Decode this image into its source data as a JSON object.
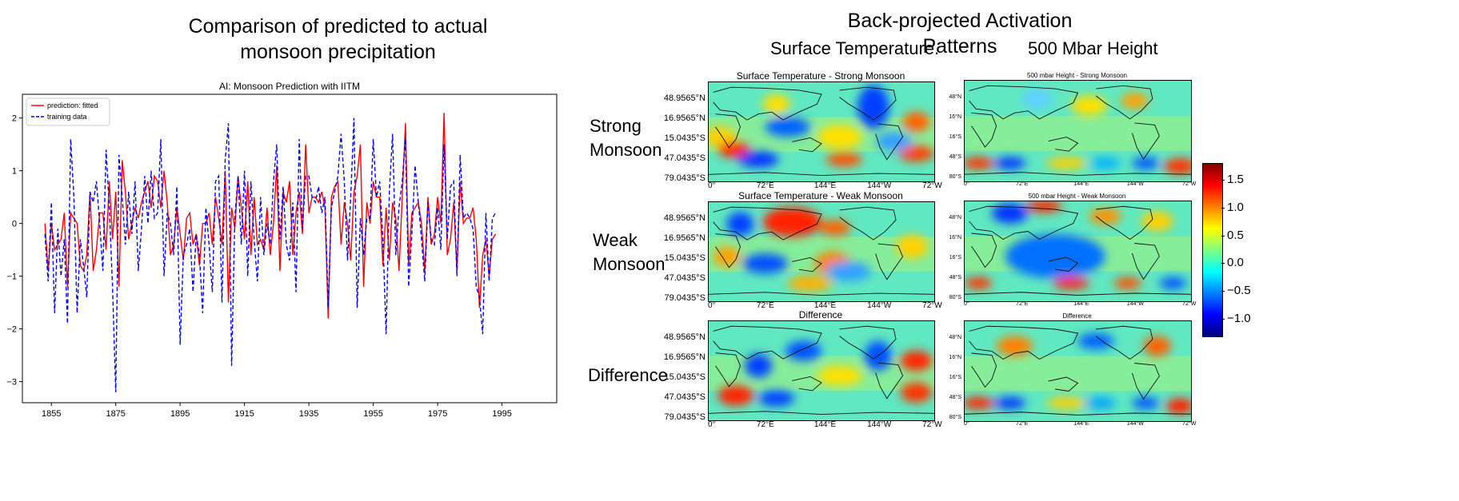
{
  "left_heading": {
    "line1": "Comparison of predicted to actual",
    "line2": "monsoon precipitation"
  },
  "right_heading": "Back-projected Activation Patterns",
  "column_headers": {
    "surface": "Surface Temperature.",
    "height": "500 Mbar Height"
  },
  "row_labels": {
    "strong": {
      "line1": "Strong",
      "line2": "Monsoon"
    },
    "weak": {
      "line1": "Weak",
      "line2": "Monsoon"
    },
    "difference": "Difference"
  },
  "map_titles": {
    "st_strong": "Surface Temperature - Strong Monsoon",
    "st_weak": "Surface Temperature - Weak Monsoon",
    "st_diff": "Difference",
    "h_strong": "500 mbar Height - Strong Monsoon",
    "h_weak": "500 mbar Height - Weak Monsoon",
    "h_diff": "Difference"
  },
  "map_lat_labels_st": [
    "48.9565°N",
    "16.9565°N",
    "15.0435°S",
    "47.0435°S",
    "79.0435°S"
  ],
  "map_lat_labels_h": [
    "48°N",
    "16°N",
    "16°S",
    "48°S",
    "80°S"
  ],
  "map_lon_labels": [
    "0°",
    "72°E",
    "144°E",
    "144°W",
    "72°W"
  ],
  "colorbar": {
    "ticks": [
      "1.5",
      "1.0",
      "0.5",
      "0.0",
      "−0.5",
      "−1.0"
    ],
    "tick_values": [
      1.5,
      1.0,
      0.5,
      0.0,
      -0.5,
      -1.0
    ],
    "range": [
      -1.3,
      1.8
    ],
    "colormap": "jet"
  },
  "chart_data": {
    "type": "line",
    "title": "AI: Monsoon Prediction with IITM",
    "xlabel": "",
    "ylabel": "",
    "xlim": [
      1846,
      2012
    ],
    "ylim": [
      -3.4,
      2.45
    ],
    "xticks": [
      1855,
      1875,
      1895,
      1915,
      1935,
      1955,
      1975,
      1995
    ],
    "yticks": [
      2,
      1,
      0,
      -1,
      -2,
      -3
    ],
    "legend_position": "top-left",
    "grid": false,
    "series": [
      {
        "name": "prediction: fitted",
        "color": "#ff0000",
        "style": "solid",
        "x_start": 1853,
        "values": [
          0.0,
          -0.9,
          0.0,
          -0.5,
          -0.4,
          -0.3,
          0.2,
          -1.2,
          0.2,
          0.1,
          0.0,
          -0.8,
          -0.9,
          -0.6,
          0.6,
          -0.9,
          -0.5,
          0.2,
          0.2,
          -0.5,
          0.8,
          -0.3,
          0.6,
          -1.2,
          1.2,
          0.6,
          -0.3,
          0.0,
          0.3,
          0.1,
          0.4,
          0.6,
          0.8,
          0.3,
          0.9,
          0.8,
          0.3,
          1.0,
          0.4,
          -0.6,
          -0.4,
          0.3,
          -0.2,
          -0.7,
          0.1,
          0.2,
          -0.4,
          -0.2,
          -0.8,
          0.0,
          0.0,
          0.2,
          -0.4,
          0.5,
          0.1,
          -0.4,
          1.0,
          -1.5,
          0.3,
          -0.1,
          0.9,
          0.3,
          -0.3,
          0.8,
          -0.6,
          0.5,
          -0.4,
          -0.3,
          -0.5,
          0.3,
          -0.6,
          0.0,
          1.1,
          -0.9,
          0.6,
          0.4,
          0.8,
          -0.6,
          0.2,
          0.6,
          -0.2,
          1.5,
          0.2,
          0.5,
          0.5,
          0.4,
          0.6,
          0.3,
          -1.8,
          0.5,
          0.7,
          0.8,
          -0.4,
          0.4,
          0.0,
          -0.7,
          0.6,
          0.9,
          1.5,
          -1.2,
          0.4,
          0.0,
          0.8,
          0.5,
          0.5,
          -0.8,
          0.3,
          -0.7,
          0.4,
          0.1,
          -0.9,
          0.5,
          1.9,
          -0.8,
          0.2,
          0.3,
          0.4,
          0.0,
          -0.9,
          0.5,
          -0.4,
          -0.2,
          0.5,
          0.0,
          2.1,
          -0.6,
          -0.3,
          0.4,
          -0.9,
          0.8,
          0.0,
          0.1,
          0.1,
          0.3,
          -0.3,
          -1.6,
          -0.6,
          -0.3,
          -1.0,
          -0.3,
          -0.2
        ]
      },
      {
        "name": "training data",
        "color": "#0000ff",
        "style": "dashed",
        "x_start": 1853,
        "values": [
          -0.2,
          -1.1,
          0.4,
          -1.7,
          -0.1,
          -1.0,
          -0.3,
          -1.9,
          1.6,
          0.5,
          -1.7,
          -0.3,
          -0.8,
          -1.4,
          0.6,
          0.4,
          0.8,
          0.0,
          -0.9,
          1.4,
          0.3,
          -1.2,
          -3.2,
          1.3,
          0.5,
          -0.4,
          0.6,
          -0.2,
          0.8,
          -0.9,
          -0.1,
          0.9,
          0.0,
          1.0,
          0.1,
          0.2,
          1.6,
          -1.0,
          0.2,
          0.0,
          -0.6,
          0.7,
          -2.3,
          -0.6,
          -0.4,
          -0.1,
          -1.3,
          -0.2,
          -0.6,
          -1.7,
          0.3,
          -0.4,
          -1.3,
          0.8,
          0.9,
          -1.5,
          1.2,
          1.9,
          -2.7,
          0.1,
          0.9,
          -0.4,
          1.0,
          -1.0,
          0.8,
          -0.3,
          -1.1,
          0.5,
          -0.6,
          0.0,
          -0.4,
          0.8,
          1.5,
          -0.3,
          0.7,
          -0.4,
          -0.7,
          0.4,
          -1.3,
          1.6,
          -0.1,
          0.9,
          0.9,
          0.5,
          0.4,
          0.7,
          0.2,
          0.5,
          -1.6,
          0.3,
          0.6,
          0.9,
          1.7,
          0.8,
          -0.7,
          0.5,
          2.0,
          -1.6,
          0.1,
          -0.6,
          0.1,
          0.1,
          1.6,
          0.5,
          0.8,
          -0.3,
          -2.1,
          0.6,
          1.7,
          -0.6,
          0.3,
          0.8,
          1.6,
          -1.2,
          -0.2,
          1.1,
          0.4,
          -0.3,
          -1.1,
          0.4,
          -0.3,
          -0.4,
          0.3,
          -0.5,
          1.5,
          -0.3,
          0.7,
          0.8,
          -1.0,
          1.3,
          0.1,
          0.2,
          0.1,
          -0.1,
          -1.2,
          -1.4,
          -2.1,
          0.2,
          -1.1,
          0.1,
          0.2
        ]
      }
    ]
  }
}
